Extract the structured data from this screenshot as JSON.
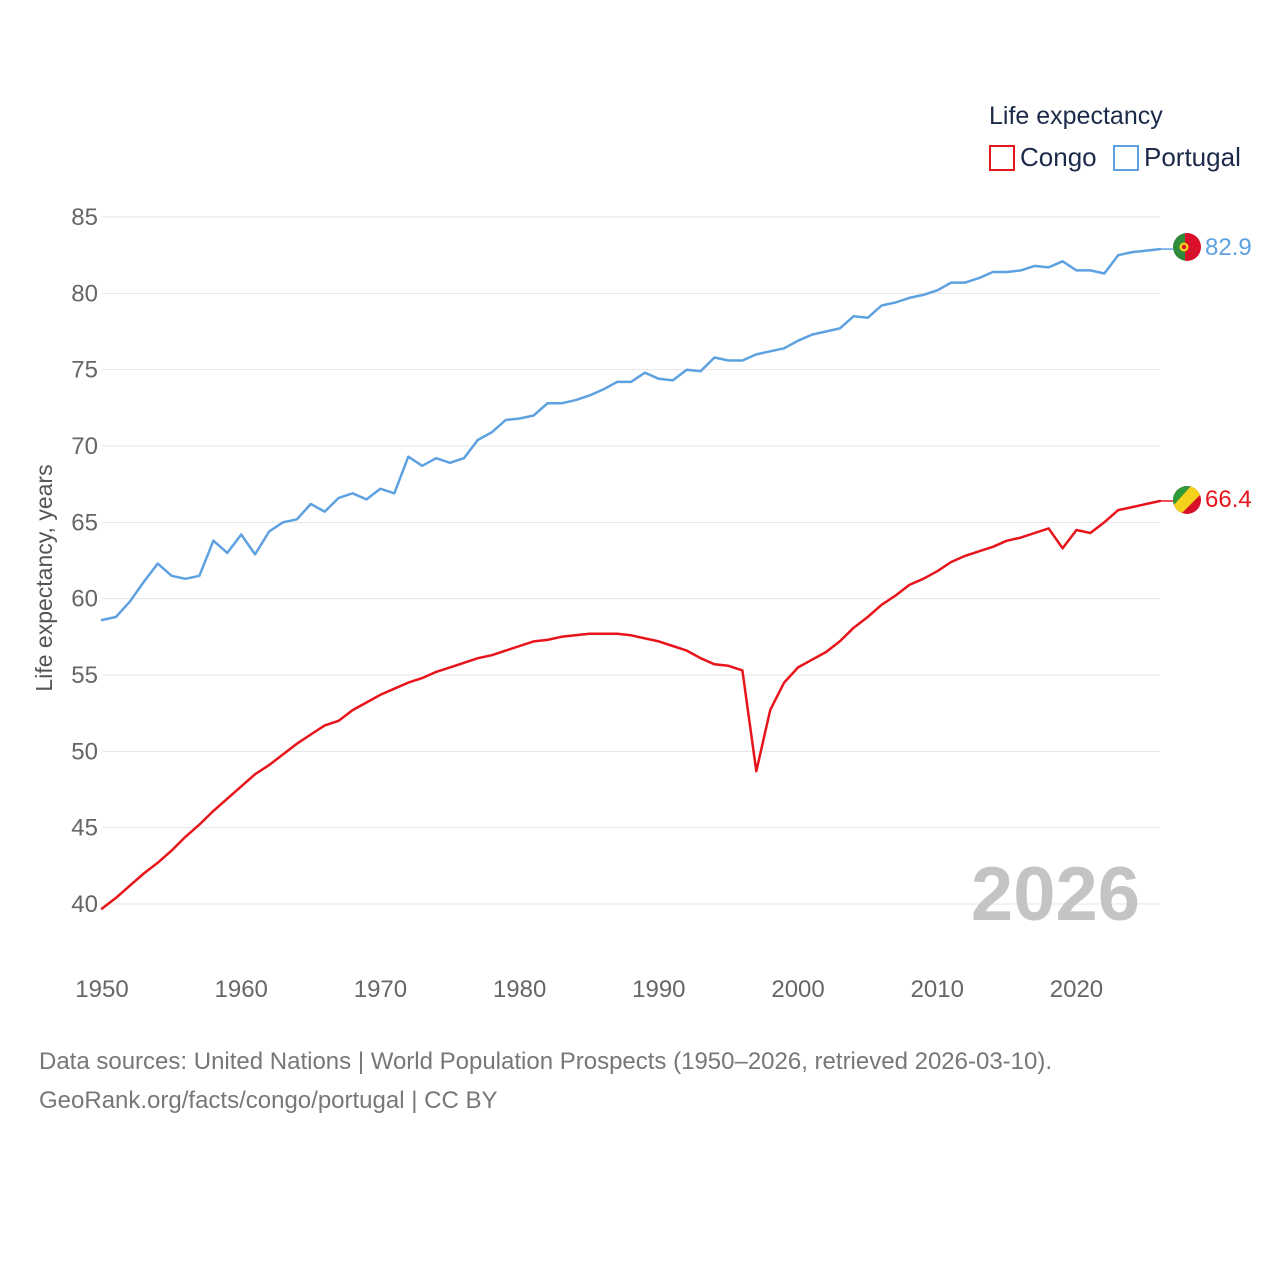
{
  "chart_data": {
    "type": "line",
    "title": "Life expectancy",
    "xlabel": "",
    "ylabel": "Life expectancy, years",
    "xlim": [
      1950,
      2026
    ],
    "ylim": [
      40,
      85
    ],
    "x_ticks": [
      1950,
      1960,
      1970,
      1980,
      1990,
      2000,
      2010,
      2020
    ],
    "y_ticks": [
      40,
      45,
      50,
      55,
      60,
      65,
      70,
      75,
      80,
      85
    ],
    "grid": true,
    "legend_position": "top-right",
    "year_stamp": "2026",
    "series": [
      {
        "name": "Congo",
        "color": "#e8141c",
        "end_label": "66.4",
        "flag": "congo-flag",
        "x": [
          1950,
          1951,
          1952,
          1953,
          1954,
          1955,
          1956,
          1957,
          1958,
          1959,
          1960,
          1961,
          1962,
          1963,
          1964,
          1965,
          1966,
          1967,
          1968,
          1969,
          1970,
          1971,
          1972,
          1973,
          1974,
          1975,
          1976,
          1977,
          1978,
          1979,
          1980,
          1981,
          1982,
          1983,
          1984,
          1985,
          1986,
          1987,
          1988,
          1989,
          1990,
          1991,
          1992,
          1993,
          1994,
          1995,
          1996,
          1997,
          1998,
          1999,
          2000,
          2001,
          2002,
          2003,
          2004,
          2005,
          2006,
          2007,
          2008,
          2009,
          2010,
          2011,
          2012,
          2013,
          2014,
          2015,
          2016,
          2017,
          2018,
          2019,
          2020,
          2021,
          2022,
          2023,
          2024,
          2025,
          2026
        ],
        "values": [
          39.7,
          40.4,
          41.2,
          42.0,
          42.7,
          43.5,
          44.4,
          45.2,
          46.1,
          46.9,
          47.7,
          48.5,
          49.1,
          49.8,
          50.5,
          51.1,
          51.7,
          52.0,
          52.7,
          53.2,
          53.7,
          54.1,
          54.5,
          54.8,
          55.2,
          55.5,
          55.8,
          56.1,
          56.3,
          56.6,
          56.9,
          57.2,
          57.3,
          57.5,
          57.6,
          57.7,
          57.7,
          57.7,
          57.6,
          57.4,
          57.2,
          56.9,
          56.6,
          56.1,
          55.7,
          55.6,
          55.3,
          48.7,
          52.7,
          54.5,
          55.5,
          56.0,
          56.5,
          57.2,
          58.1,
          58.8,
          59.6,
          60.2,
          60.9,
          61.3,
          61.8,
          62.4,
          62.8,
          63.1,
          63.4,
          63.8,
          64.0,
          64.3,
          64.6,
          63.3,
          64.5,
          64.3,
          65.0,
          65.8,
          66.0,
          66.2,
          66.4
        ]
      },
      {
        "name": "Portugal",
        "color": "#5ea1e0",
        "end_label": "82.9",
        "flag": "portugal-flag",
        "x": [
          1950,
          1951,
          1952,
          1953,
          1954,
          1955,
          1956,
          1957,
          1958,
          1959,
          1960,
          1961,
          1962,
          1963,
          1964,
          1965,
          1966,
          1967,
          1968,
          1969,
          1970,
          1971,
          1972,
          1973,
          1974,
          1975,
          1976,
          1977,
          1978,
          1979,
          1980,
          1981,
          1982,
          1983,
          1984,
          1985,
          1986,
          1987,
          1988,
          1989,
          1990,
          1991,
          1992,
          1993,
          1994,
          1995,
          1996,
          1997,
          1998,
          1999,
          2000,
          2001,
          2002,
          2003,
          2004,
          2005,
          2006,
          2007,
          2008,
          2009,
          2010,
          2011,
          2012,
          2013,
          2014,
          2015,
          2016,
          2017,
          2018,
          2019,
          2020,
          2021,
          2022,
          2023,
          2024,
          2025,
          2026
        ],
        "values": [
          58.6,
          58.8,
          59.8,
          61.1,
          62.3,
          61.5,
          61.3,
          61.5,
          63.8,
          63.0,
          64.2,
          62.9,
          64.4,
          65.0,
          65.2,
          66.2,
          65.7,
          66.6,
          66.9,
          66.5,
          67.2,
          66.9,
          69.3,
          68.7,
          69.2,
          68.9,
          69.2,
          70.4,
          70.9,
          71.7,
          71.8,
          72.0,
          72.8,
          72.8,
          73.0,
          73.3,
          73.7,
          74.2,
          74.2,
          74.8,
          74.4,
          74.3,
          75.0,
          74.9,
          75.8,
          75.6,
          75.6,
          76.0,
          76.2,
          76.4,
          76.9,
          77.3,
          77.5,
          77.7,
          78.5,
          78.4,
          79.2,
          79.4,
          79.7,
          79.9,
          80.2,
          80.7,
          80.7,
          81.0,
          81.4,
          81.4,
          81.5,
          81.8,
          81.7,
          82.1,
          81.5,
          81.5,
          81.3,
          82.5,
          82.7,
          82.8,
          82.9
        ]
      }
    ]
  },
  "source": {
    "line1": "Data sources: United Nations | World Population Prospects (1950–2026, retrieved 2026-03-10).",
    "line2": "GeoRank.org/facts/congo/portugal | CC BY"
  }
}
